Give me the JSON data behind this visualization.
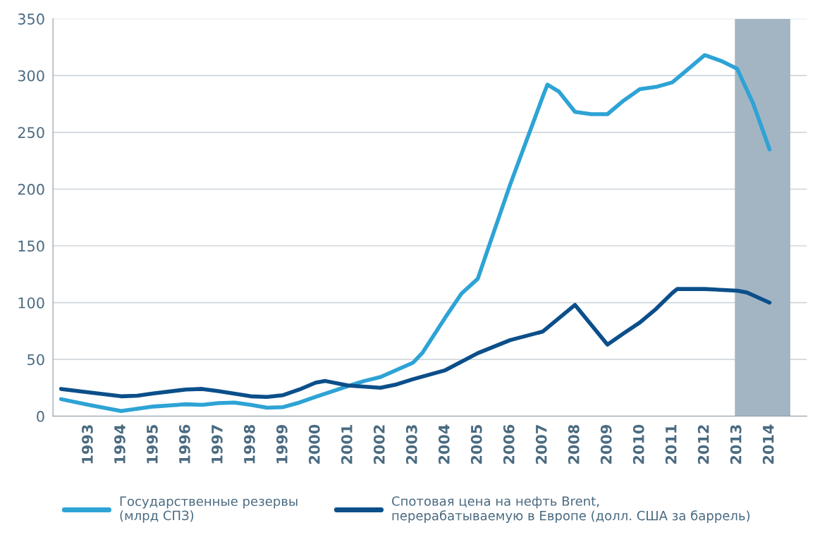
{
  "chart_data": {
    "type": "line",
    "xlim": [
      1991.9,
      2015.15
    ],
    "ylim": [
      0,
      350
    ],
    "xticks": [
      1993,
      1994,
      1995,
      1996,
      1997,
      1998,
      1999,
      2000,
      2001,
      2002,
      2003,
      2004,
      2005,
      2006,
      2007,
      2008,
      2009,
      2010,
      2011,
      2012,
      2013,
      2014
    ],
    "yticks": [
      0,
      50,
      100,
      150,
      200,
      250,
      300,
      350
    ],
    "grid": "y",
    "legend": "bottom",
    "marker": "none",
    "line_style": "solid",
    "bands": [
      {
        "axis": "x",
        "from": 2012.93,
        "to": 2014.64,
        "color": "#a3b5c3"
      }
    ],
    "series": [
      {
        "name": "Государственные резервы\n(млрд СПЗ)",
        "color": "#2ea3d5",
        "x": [
          1992.15,
          1993,
          1994,
          1995,
          1996,
          1996.5,
          1997,
          1997.5,
          1998,
          1998.5,
          1999,
          1999.5,
          2000,
          2001,
          2001.5,
          2002,
          2003,
          2003.3,
          2004,
          2004.5,
          2005,
          2005.3,
          2006,
          2007,
          2007.15,
          2007.5,
          2008,
          2008.5,
          2009,
          2009.5,
          2010,
          2010.5,
          2011,
          2011.5,
          2012,
          2012.5,
          2013,
          2013.5,
          2014
        ],
        "values": [
          15,
          10,
          4.5,
          8.5,
          10.5,
          10,
          11.5,
          12,
          10,
          7.5,
          8,
          12,
          17,
          26.5,
          31,
          34.5,
          47,
          56,
          87,
          108,
          121,
          146,
          204,
          281,
          292,
          286,
          268,
          266,
          266,
          278,
          288,
          290,
          294,
          306,
          318,
          313,
          306,
          275,
          235
        ]
      },
      {
        "name": "Спотовая цена на нефть Brent,\nперерабатываемую в Европе (долл. США за баррель)",
        "color": "#0b4f8a",
        "x": [
          1992.15,
          1993,
          1994,
          1994.5,
          1995,
          1996,
          1996.5,
          1997,
          1998,
          1998.5,
          1999,
          1999.5,
          2000,
          2000.3,
          2001,
          2002,
          2002.5,
          2003,
          2004,
          2005,
          2006,
          2007,
          2008,
          2009,
          2009.5,
          2010,
          2010.5,
          2011,
          2011.15,
          2012,
          2013,
          2013.3,
          2014
        ],
        "values": [
          24,
          21,
          17.5,
          18,
          20,
          23.5,
          24,
          22,
          17.5,
          17,
          18.5,
          23.5,
          29.5,
          31,
          27,
          25,
          28,
          32.5,
          40.5,
          55.5,
          67,
          74.5,
          98,
          63,
          73,
          82.5,
          94.5,
          108.5,
          112,
          112,
          110.5,
          109,
          100
        ]
      }
    ]
  }
}
